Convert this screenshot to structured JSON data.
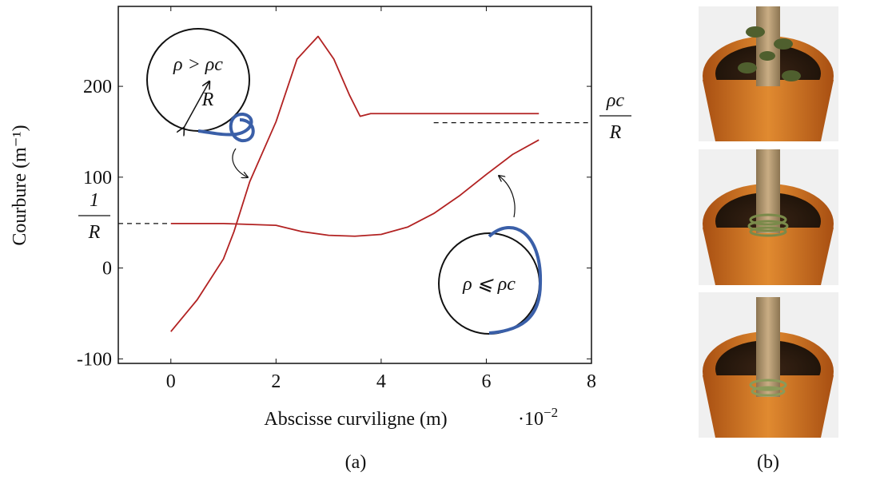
{
  "chart_data": {
    "type": "line",
    "xlabel": "Abscisse curviligne (m)",
    "x_scale_base": "·10",
    "x_scale_exponent": "−2",
    "ylabel": "Courbure (m⁻¹)",
    "xlim": [
      -1,
      8
    ],
    "ylim": [
      -105,
      288
    ],
    "xticks": [
      0,
      2,
      4,
      6,
      8
    ],
    "yticks": [
      -100,
      0,
      100,
      200
    ],
    "series": [
      {
        "color": "#b22222",
        "x": [
          0,
          0.5,
          1,
          1.2,
          1.5,
          2,
          2.4,
          2.8,
          3.1,
          3.4,
          3.6,
          3.8,
          4,
          5,
          6,
          7
        ],
        "values": [
          -70,
          -35,
          10,
          40,
          95,
          161,
          230,
          255,
          230,
          190,
          167,
          170,
          170,
          170,
          170,
          170
        ]
      },
      {
        "color": "#b22222",
        "x": [
          0,
          1,
          2,
          2.5,
          3,
          3.5,
          4,
          4.5,
          5,
          5.5,
          6,
          6.5,
          7
        ],
        "values": [
          49,
          49,
          47,
          40,
          36,
          35,
          37,
          45,
          60,
          80,
          103,
          125,
          141
        ]
      }
    ],
    "reference_lines": [
      {
        "y": 49,
        "x": [
          -1,
          0
        ],
        "numerator": "1",
        "denominator": "R"
      },
      {
        "y": 160,
        "x": [
          5,
          8
        ],
        "numerator": "ρc",
        "denominator": "R"
      }
    ],
    "annotations": [
      "ρ > ρc",
      "R",
      "ρ ⩽ ρc"
    ],
    "captions": [
      "(a)",
      "(b)"
    ]
  }
}
